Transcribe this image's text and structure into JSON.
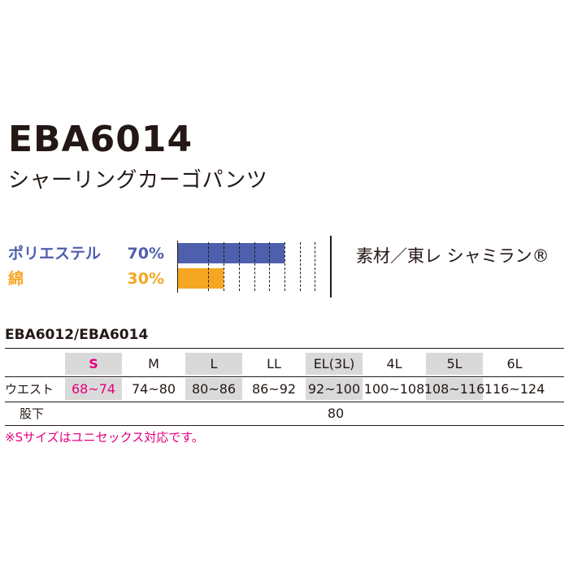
{
  "product": {
    "code": "EBA6014",
    "name": "シャーリングカーゴパンツ"
  },
  "materials": [
    {
      "name": "ポリエステル",
      "percent_text": "70%",
      "percent": 70,
      "color": "#4e5fae"
    },
    {
      "name": "綿",
      "percent_text": "30%",
      "percent": 30,
      "color": "#f5a623"
    }
  ],
  "fabric_note": "素材／東レ シャミラン®",
  "size_table": {
    "series_label": "EBA6012/EBA6014",
    "sizes": [
      "S",
      "M",
      "L",
      "LL",
      "EL(3L)",
      "4L",
      "5L",
      "6L"
    ],
    "waist_label": "ウエスト",
    "waist": [
      "68~74",
      "74~80",
      "80~86",
      "86~92",
      "92~100",
      "100~108",
      "108~116",
      "116~124"
    ],
    "inseam_label": "股下",
    "inseam": "80",
    "shaded_sizes": [
      "S",
      "L",
      "EL(3L)",
      "5L"
    ],
    "highlight_color": "#e4007f",
    "shade_color": "#d9d9d9"
  },
  "footnote": "※Sサイズはユニセックス対応です。"
}
